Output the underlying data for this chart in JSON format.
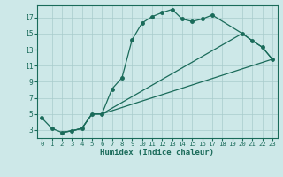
{
  "xlabel": "Humidex (Indice chaleur)",
  "bg_color": "#cde8e8",
  "line_color": "#1a6b5a",
  "grid_color": "#a8cccc",
  "xlim": [
    -0.5,
    23.5
  ],
  "ylim": [
    2.0,
    18.5
  ],
  "xticks": [
    0,
    1,
    2,
    3,
    4,
    5,
    6,
    7,
    8,
    9,
    10,
    11,
    12,
    13,
    14,
    15,
    16,
    17,
    18,
    19,
    20,
    21,
    22,
    23
  ],
  "yticks": [
    3,
    5,
    7,
    9,
    11,
    13,
    15,
    17
  ],
  "line1_x": [
    0,
    1,
    2,
    3,
    4,
    5,
    6,
    7,
    8,
    9,
    10,
    11,
    12,
    13,
    14,
    15,
    16,
    17,
    20,
    21,
    22,
    23
  ],
  "line1_y": [
    4.5,
    3.2,
    2.7,
    2.9,
    3.2,
    5.0,
    5.0,
    8.1,
    9.5,
    14.2,
    16.3,
    17.1,
    17.6,
    18.0,
    16.8,
    16.5,
    16.8,
    17.3,
    15.0,
    14.1,
    13.3,
    11.8
  ],
  "line2_x": [
    2,
    3,
    4,
    5,
    6,
    23
  ],
  "line2_y": [
    2.7,
    2.9,
    3.2,
    5.0,
    5.0,
    11.8
  ],
  "line3_x": [
    2,
    3,
    4,
    5,
    6,
    20,
    21,
    22,
    23
  ],
  "line3_y": [
    2.7,
    2.9,
    3.2,
    5.0,
    5.0,
    15.0,
    14.1,
    13.3,
    11.8
  ]
}
